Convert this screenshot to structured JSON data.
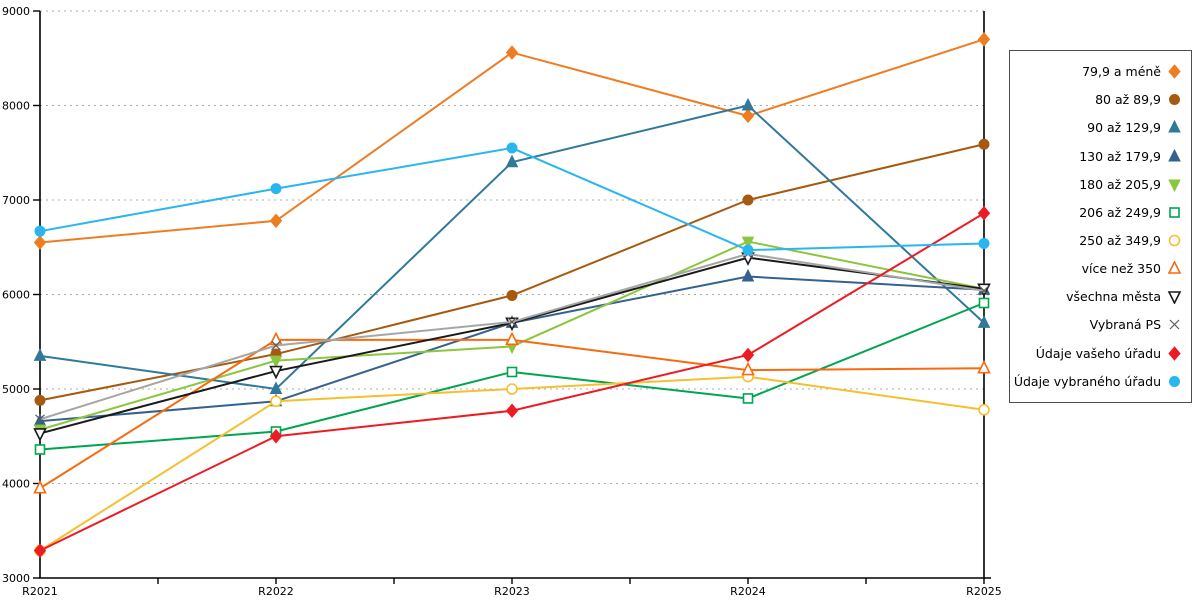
{
  "chart_data": {
    "type": "line",
    "title": "",
    "xlabel": "",
    "ylabel": "",
    "x_categories": [
      "R2021",
      "R2022",
      "R2023",
      "R2024",
      "R2025"
    ],
    "ylim": [
      3000,
      9000
    ],
    "ytick_step": 1000,
    "yticks": [
      "3000",
      "4000",
      "5000",
      "6000",
      "7000",
      "8000",
      "9000"
    ],
    "grid": "horizontal-dotted",
    "legend_position": "right-box",
    "series": [
      {
        "name": "79,9 a méně",
        "marker": "diamond",
        "filled": true,
        "color": "#EE7D22",
        "values": [
          6550,
          6780,
          8560,
          7890,
          8700
        ]
      },
      {
        "name": "80 až 89,9",
        "marker": "circle",
        "filled": true,
        "color": "#A65A10",
        "values": [
          4880,
          5370,
          5990,
          7000,
          7590
        ]
      },
      {
        "name": "90 až 129,9",
        "marker": "triangle-up",
        "filled": true,
        "color": "#31799B",
        "values": [
          5350,
          5000,
          7400,
          8000,
          5700
        ]
      },
      {
        "name": "130 až 179,9",
        "marker": "triangle-up",
        "filled": true,
        "color": "#35618F",
        "values": [
          4660,
          4870,
          5700,
          6190,
          6050
        ]
      },
      {
        "name": "180 až 205,9",
        "marker": "triangle-down",
        "filled": true,
        "color": "#8CC63F",
        "values": [
          4570,
          5300,
          5450,
          6560,
          6060
        ]
      },
      {
        "name": "206 až 249,9",
        "marker": "square",
        "filled": false,
        "color": "#00A550",
        "values": [
          4360,
          4550,
          5180,
          4900,
          5910
        ]
      },
      {
        "name": "250 až 349,9",
        "marker": "circle",
        "filled": false,
        "color": "#F5C02F",
        "values": [
          3290,
          4870,
          5000,
          5130,
          4780
        ]
      },
      {
        "name": "více než 350",
        "marker": "triangle-up",
        "filled": false,
        "color": "#F76B0E",
        "values": [
          3950,
          5520,
          5520,
          5200,
          5220
        ]
      },
      {
        "name": "všechna města",
        "marker": "triangle-down",
        "filled": false,
        "color": "#1A1A1A",
        "values": [
          4530,
          5190,
          5700,
          6390,
          6060
        ]
      },
      {
        "name": "Vybraná PS",
        "marker": "x",
        "filled": false,
        "color": "#A6A6A6",
        "marker_color": "#595959",
        "values": [
          4680,
          5460,
          5710,
          6430,
          6040
        ]
      },
      {
        "name": "Údaje vašeho úřadu",
        "marker": "diamond",
        "filled": true,
        "color": "#ED1C24",
        "values": [
          3290,
          4500,
          4770,
          5360,
          6860
        ]
      },
      {
        "name": "Údaje vybraného úřadu",
        "marker": "circle",
        "filled": true,
        "color": "#29B6F0",
        "values": [
          6670,
          7120,
          7550,
          6470,
          6540
        ]
      }
    ],
    "colors": {
      "axis": "#000000",
      "gridline": "#ababab",
      "background": "#ffffff",
      "legend_border": "#4d4d4d"
    }
  }
}
